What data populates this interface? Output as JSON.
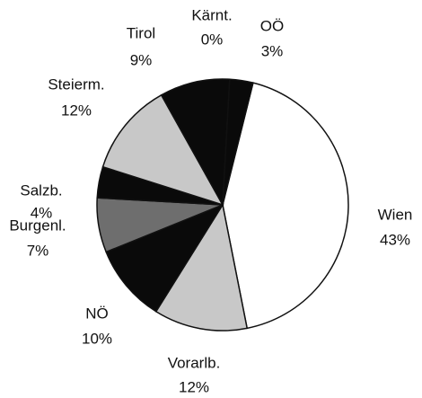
{
  "chart_data": {
    "type": "pie",
    "categories": [
      "Wien",
      "Vorarlb.",
      "NÖ",
      "Burgenl.",
      "Salzb.",
      "Steierm.",
      "Tirol",
      "Kärnt.",
      "OÖ"
    ],
    "values": [
      43,
      12,
      10,
      7,
      4,
      12,
      9,
      0,
      3
    ],
    "value_labels": [
      "43%",
      "12%",
      "10%",
      "7%",
      "4%",
      "12%",
      "9%",
      "0%",
      "3%"
    ],
    "colors": [
      "#ffffff",
      "#c8c8c8",
      "#0a0a0a",
      "#6e6e6e",
      "#0a0a0a",
      "#c8c8c8",
      "#0a0a0a",
      "#0a0a0a",
      "#0a0a0a"
    ]
  }
}
